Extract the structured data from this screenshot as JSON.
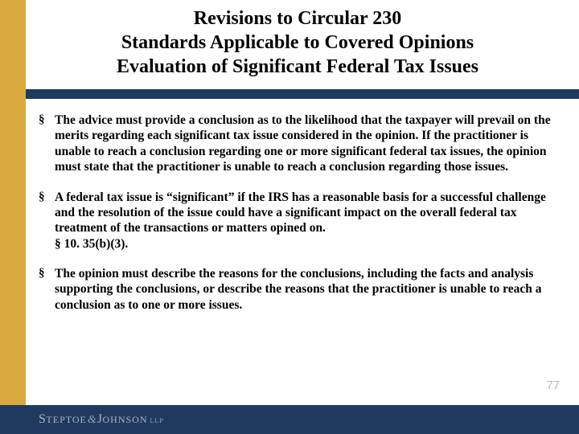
{
  "colors": {
    "gold": "#d9a93e",
    "navy": "#203a5f",
    "page_num": "#b9b9b9",
    "logo_text": "#a9b7c9"
  },
  "title": {
    "line1": "Revisions to Circular 230",
    "line2": "Standards Applicable to Covered Opinions",
    "line3": "Evaluation of Significant Federal Tax Issues"
  },
  "bullets": [
    "The advice must provide a conclusion as to the likelihood that the taxpayer will prevail on the merits regarding each significant tax issue considered in the opinion.  If the practitioner is unable to reach a conclusion regarding one or more significant federal tax issues, the opinion must state that the practitioner is unable to reach a conclusion regarding those issues.",
    "A federal tax issue is “significant” if the IRS has a reasonable basis for a successful challenge and the resolution of the issue could have a significant impact on the overall federal tax treatment of the transactions or matters opined on.\n§ 10. 35(b)(3).",
    "The opinion must describe the reasons for the conclusions, including the facts and analysis supporting the conclusions, or describe the reasons that the practitioner is unable to reach a conclusion as to one or more issues."
  ],
  "page_number": "77",
  "logo": {
    "part1_cap": "S",
    "part1_rest": "TEPTOE",
    "amp": "&",
    "part2_cap": "J",
    "part2_rest": "OHNSON",
    "suffix": "LLP"
  }
}
